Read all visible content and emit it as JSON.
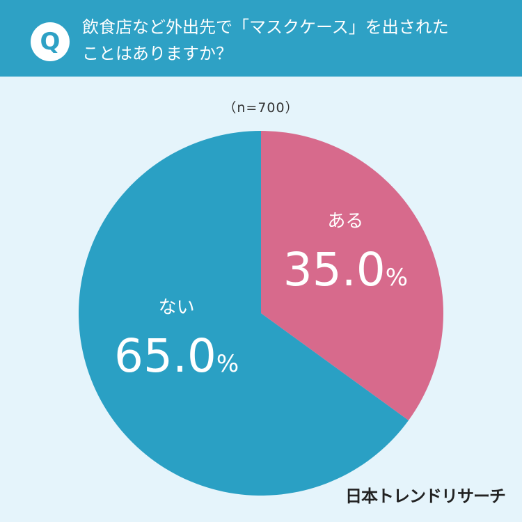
{
  "header": {
    "badge": "Q",
    "question_line1": "飲食店など外出先で「マスクケース」を出された",
    "question_line2": "ことはありますか？"
  },
  "sample_size": "（n=700）",
  "brand": "日本トレンドリサーチ",
  "colors": {
    "header_bg": "#2ea1c5",
    "page_bg": "#e5f4fb",
    "slice_yes": "#d76a8c",
    "slice_no": "#2aa0c4"
  },
  "chart_data": {
    "type": "pie",
    "categories": [
      "ある",
      "ない"
    ],
    "values": [
      35.0,
      65.0
    ],
    "value_labels": [
      "35.0%",
      "65.0%"
    ],
    "colors": [
      "#d76a8c",
      "#2aa0c4"
    ],
    "start": "12 o'clock",
    "direction": "clockwise"
  }
}
